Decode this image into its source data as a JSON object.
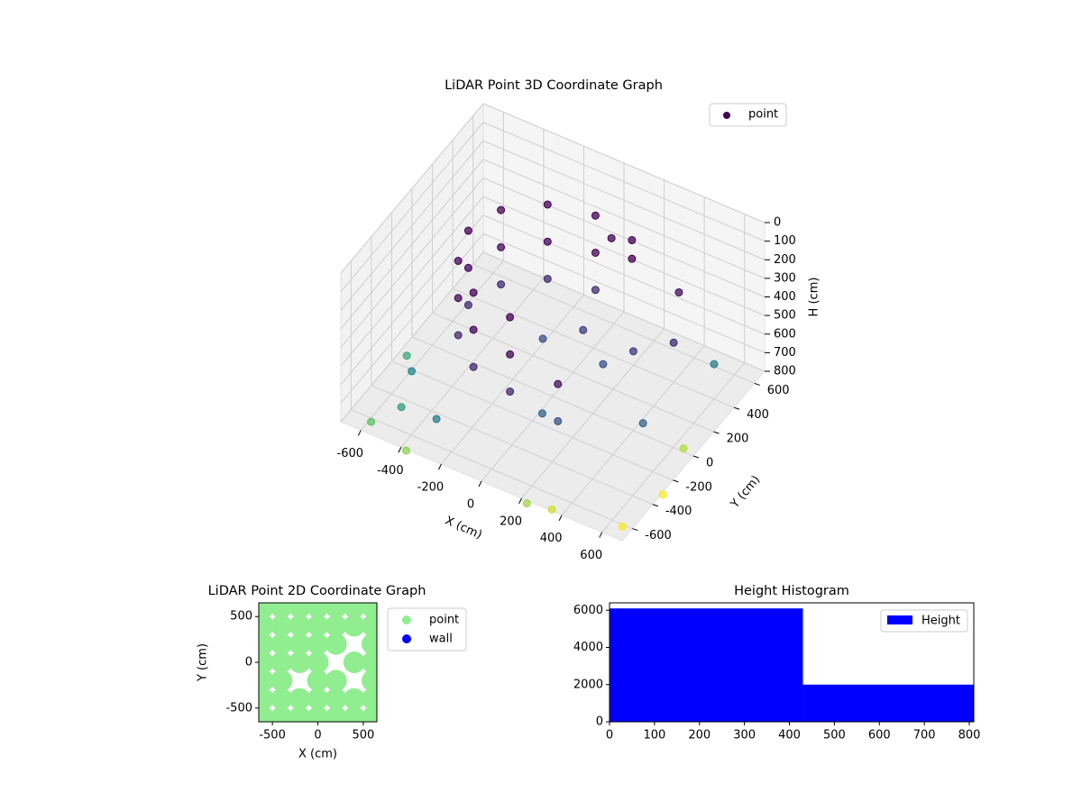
{
  "chart_data": [
    {
      "type": "scatter3d",
      "title": "LiDAR Point 3D Coordinate Graph",
      "x_label": "X (cm)",
      "y_label": "Y (cm)",
      "z_label": "H (cm)",
      "xlim": [
        -700,
        700
      ],
      "ylim": [
        -700,
        700
      ],
      "zlim": [
        0,
        800
      ],
      "z_inverted": true,
      "xticks": [
        -600,
        -400,
        -200,
        0,
        200,
        400,
        600
      ],
      "yticks": [
        -600,
        -400,
        -200,
        0,
        200,
        400,
        600
      ],
      "zticks": [
        0,
        100,
        200,
        300,
        400,
        500,
        600,
        700,
        800
      ],
      "grid": true,
      "colormap": "viridis",
      "legend": "upper right",
      "series": [
        {
          "name": "point",
          "color": "#440154",
          "x": [
            0,
            0,
            0,
            -210,
            -210,
            -210,
            -364,
            -364,
            -364,
            -420,
            -420,
            -420,
            -364,
            -364,
            -364,
            -210,
            -210,
            -210,
            0,
            0,
            0,
            210,
            210,
            210,
            210,
            -550,
            -500,
            -300,
            100,
            200,
            300,
            450,
            500,
            -100,
            50,
            550,
            -600,
            -400,
            300,
            600,
            650,
            600,
            200,
            -650,
            400,
            100
          ],
          "y": [
            420,
            420,
            420,
            364,
            364,
            364,
            210,
            210,
            210,
            0,
            0,
            0,
            -210,
            -210,
            -210,
            -364,
            -364,
            -364,
            -420,
            -420,
            -420,
            364,
            364,
            -364,
            -364,
            -300,
            -500,
            -550,
            -300,
            100,
            200,
            300,
            -100,
            100,
            200,
            500,
            -600,
            -650,
            -600,
            -500,
            -200,
            100,
            -650,
            -150,
            450,
            380
          ],
          "z": [
            100,
            300,
            500,
            100,
            300,
            500,
            100,
            300,
            500,
            100,
            300,
            500,
            100,
            300,
            500,
            100,
            300,
            500,
            100,
            300,
            500,
            100,
            200,
            400,
            600,
            720,
            760,
            700,
            650,
            600,
            550,
            500,
            650,
            600,
            550,
            700,
            820,
            850,
            880,
            900,
            900,
            870,
            860,
            780,
            350,
            150
          ]
        }
      ]
    },
    {
      "type": "scatter",
      "title": "LiDAR Point 2D Coordinate Graph",
      "x_label": "X (cm)",
      "y_label": "Y (cm)",
      "xlim": [
        -650,
        650
      ],
      "ylim": [
        -650,
        650
      ],
      "xticks": [
        -500,
        0,
        500
      ],
      "yticks": [
        -500,
        0,
        500
      ],
      "legend": "outside right",
      "series": [
        {
          "name": "point",
          "color": "#90ee90",
          "x": [
            -600,
            -400,
            -200,
            0,
            200,
            400,
            600,
            -600,
            -400,
            -200,
            0,
            200,
            400,
            600,
            -600,
            -400,
            0,
            200,
            600,
            -600,
            -400,
            -200,
            0,
            400,
            600,
            -600,
            -400,
            -200,
            0,
            200,
            600,
            -600,
            -400,
            -200,
            0,
            200,
            400,
            600,
            -600,
            -400,
            -200,
            0,
            200,
            400,
            600
          ],
          "y": [
            -600,
            -600,
            -600,
            -600,
            -600,
            -600,
            -600,
            -400,
            -400,
            -400,
            -400,
            -400,
            -400,
            -400,
            -200,
            -200,
            -200,
            -200,
            -200,
            0,
            0,
            0,
            0,
            0,
            0,
            200,
            200,
            200,
            200,
            200,
            200,
            400,
            400,
            400,
            400,
            400,
            400,
            400,
            600,
            600,
            600,
            600,
            600,
            600,
            600
          ]
        },
        {
          "name": "wall",
          "color": "#0000ff",
          "x": [],
          "y": []
        }
      ]
    },
    {
      "type": "histogram",
      "title": "Height Histogram",
      "bins": [
        0,
        430,
        810
      ],
      "xlim": [
        0,
        810
      ],
      "ylim": [
        0,
        6400
      ],
      "xticks": [
        0,
        100,
        200,
        300,
        400,
        500,
        600,
        700,
        800
      ],
      "yticks": [
        0,
        2000,
        4000,
        6000
      ],
      "legend": "upper right",
      "series": [
        {
          "name": "Height",
          "color": "#0000ff",
          "values": [
            6100,
            2000
          ]
        }
      ]
    }
  ]
}
